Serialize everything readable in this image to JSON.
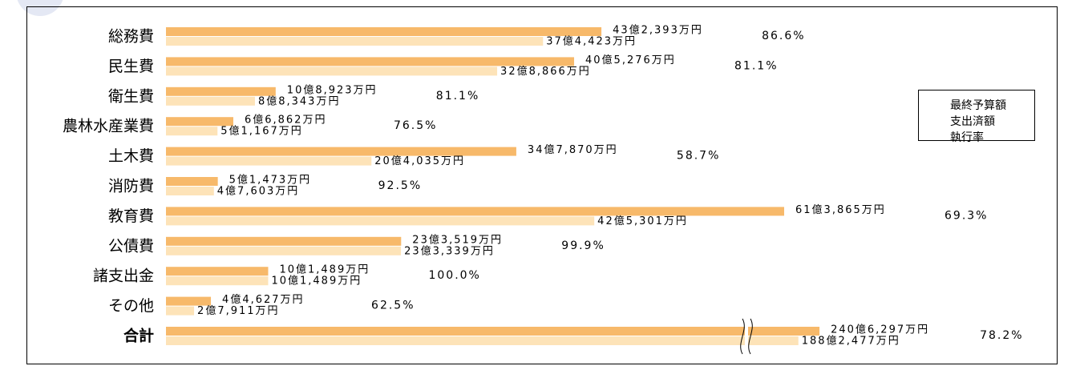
{
  "chart_data": {
    "type": "bar",
    "orientation": "horizontal",
    "categories": [
      "総務費",
      "民生費",
      "衛生費",
      "農林水産業費",
      "土木費",
      "消防費",
      "教育費",
      "公債費",
      "諸支出金",
      "その他",
      "合計"
    ],
    "series": [
      {
        "name": "最終予算額",
        "color": "#f7b96a",
        "values": [
          432393,
          405276,
          108923,
          66862,
          347870,
          51473,
          613865,
          233519,
          101489,
          44627,
          2406297
        ],
        "value_labels": [
          "43億2,393万円",
          "40億5,276万円",
          "10億8,923万円",
          "6億6,862万円",
          "34億7,870万円",
          "5億1,473万円",
          "61億3,865万円",
          "23億3,519万円",
          "10億1,489万円",
          "4億4,627万円",
          "240億6,297万円"
        ]
      },
      {
        "name": "支出済額",
        "color": "#fde3b8",
        "values": [
          374423,
          328866,
          88343,
          51167,
          204035,
          47603,
          425301,
          233339,
          101489,
          27911,
          1882477
        ],
        "value_labels": [
          "37億4,423万円",
          "32億8,866万円",
          "8億8,343万円",
          "5億1,167万円",
          "20億4,035万円",
          "4億7,603万円",
          "42億5,301万円",
          "23億3,339万円",
          "10億1,489万円",
          "2億7,911万円",
          "188億2,477万円"
        ]
      }
    ],
    "rate_name": "執行率",
    "rates": [
      86.6,
      81.1,
      81.1,
      76.5,
      58.7,
      92.5,
      69.3,
      99.9,
      100.0,
      62.5,
      78.2
    ],
    "rate_labels": [
      "86.6%",
      "81.1%",
      "81.1%",
      "76.5%",
      "58.7%",
      "92.5%",
      "69.3%",
      "99.9%",
      "100.0%",
      "62.5%",
      "78.2%"
    ]
  }
}
